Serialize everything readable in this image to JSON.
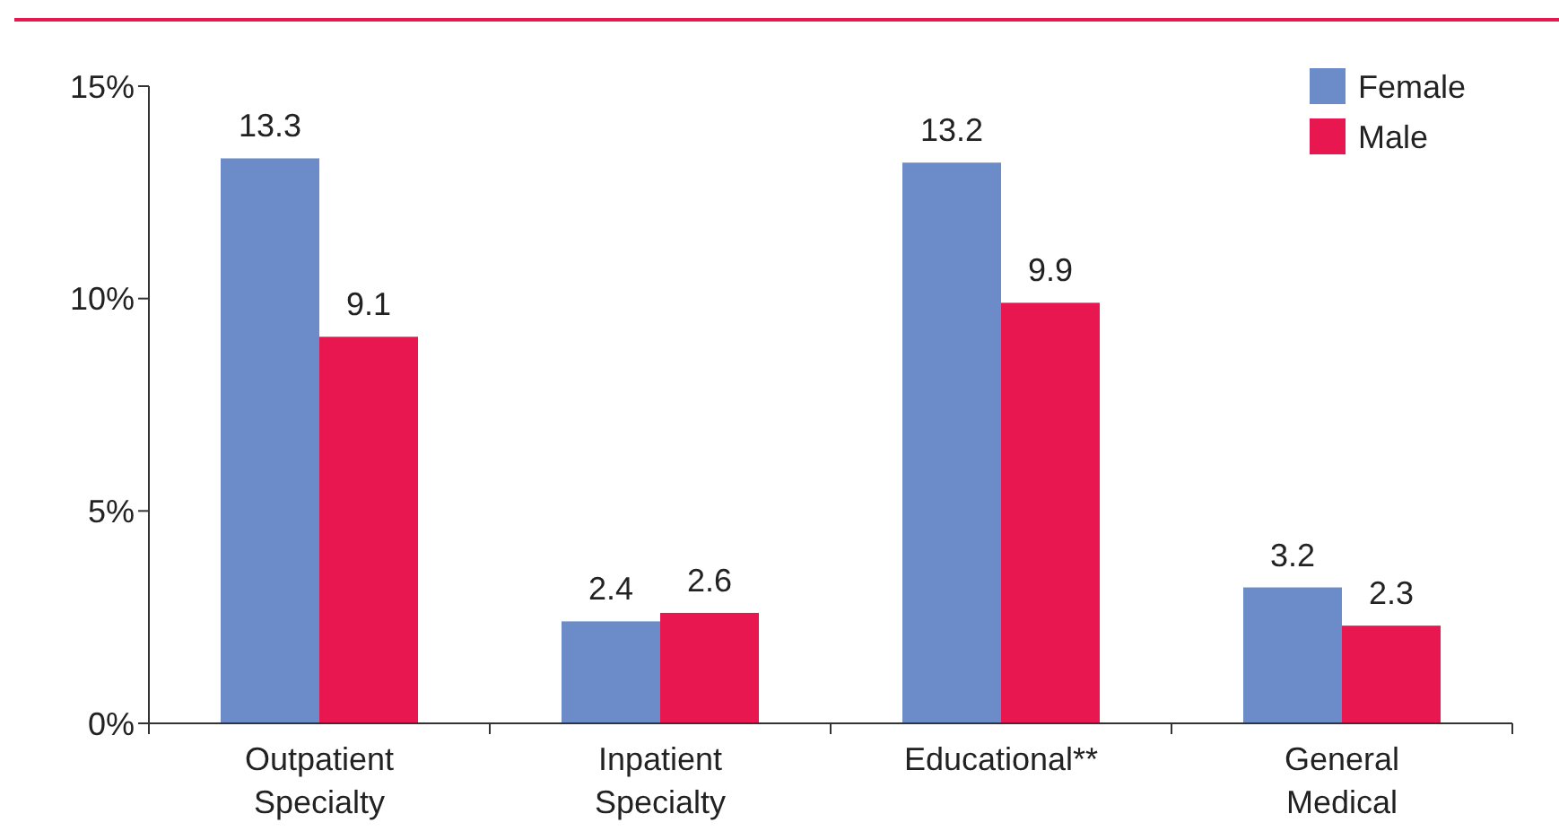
{
  "chart_data": {
    "type": "bar",
    "categories": [
      "Outpatient Specialty",
      "Inpatient Specialty",
      "Educational**",
      "General Medical"
    ],
    "series": [
      {
        "name": "Female",
        "color": "#6b8cc8",
        "values": [
          13.3,
          2.4,
          13.2,
          3.2
        ]
      },
      {
        "name": "Male",
        "color": "#e8174f",
        "values": [
          9.1,
          2.6,
          9.9,
          2.3
        ]
      }
    ],
    "ylim": [
      0,
      15
    ],
    "yticks": [
      {
        "value": 0,
        "label": "0%"
      },
      {
        "value": 5,
        "label": "5%"
      },
      {
        "value": 10,
        "label": "10%"
      },
      {
        "value": 15,
        "label": "15%"
      }
    ],
    "data_labels": true,
    "legend": "top right",
    "grid": false
  }
}
